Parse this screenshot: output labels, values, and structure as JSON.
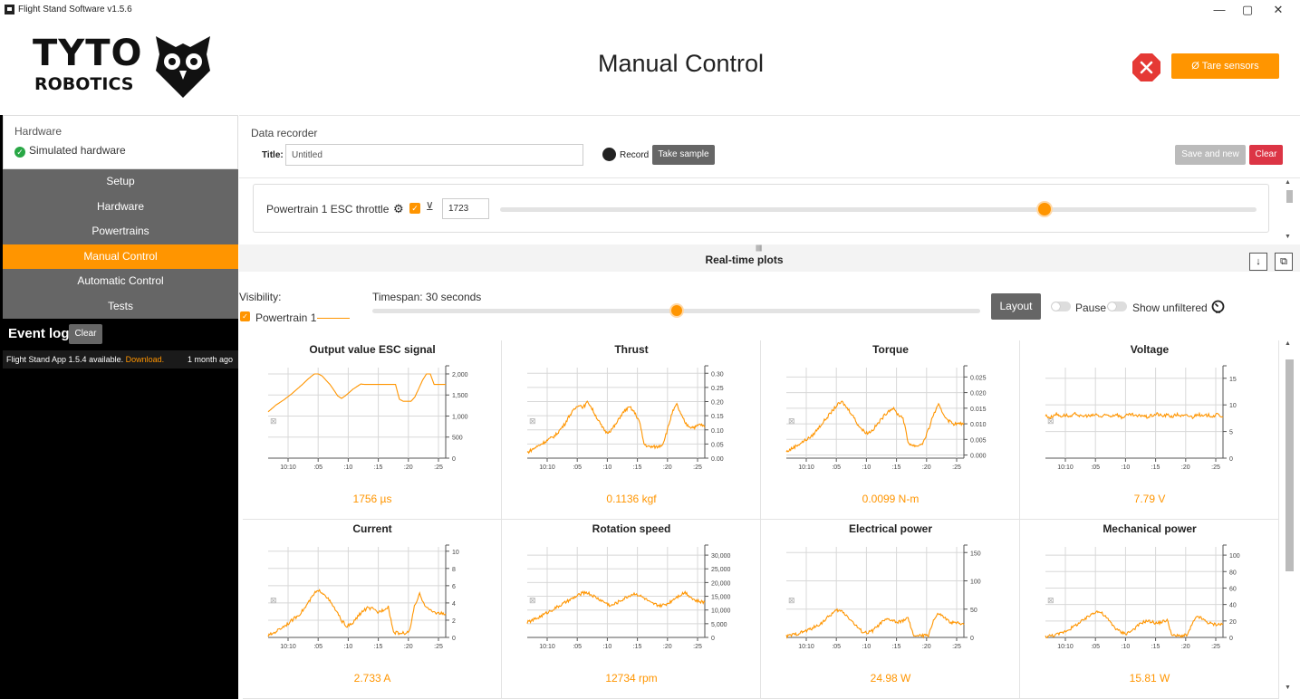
{
  "window": {
    "title": "Flight Stand Software v1.5.6",
    "minimize": "—",
    "maximize": "▢",
    "close": "✕"
  },
  "header": {
    "logo_line1": "TYTO",
    "logo_line2": "ROBOTICS",
    "title": "Manual Control",
    "tare_label": "Ø Tare sensors"
  },
  "sidebar": {
    "hardware_title": "Hardware",
    "hardware_status": "Simulated hardware",
    "items": [
      {
        "label": "Setup",
        "active": false
      },
      {
        "label": "Hardware",
        "active": false
      },
      {
        "label": "Powertrains",
        "active": false
      },
      {
        "label": "Manual Control",
        "active": true
      },
      {
        "label": "Automatic Control",
        "active": false
      },
      {
        "label": "Tests",
        "active": false
      }
    ],
    "event_log": {
      "title": "Event log",
      "clear_label": "Clear",
      "entries": [
        {
          "text": "Flight Stand App 1.5.4 available. ",
          "link": "Download.",
          "time": "1 month ago"
        }
      ]
    }
  },
  "recorder": {
    "heading": "Data recorder",
    "title_label": "Title:",
    "title_value": "Untitled",
    "record_label": "Record",
    "take_sample_label": "Take sample",
    "save_new_label": "Save and new",
    "clear_label": "Clear"
  },
  "throttle": {
    "label": "Powertrain 1 ESC throttle",
    "value": "1723",
    "fraction": 0.72
  },
  "realtime": {
    "title": "Real-time plots",
    "download_icon": "↓",
    "popout_icon": "⧉",
    "visibility_label": "Visibility:",
    "powertrain_label": "Powertrain 1",
    "timespan_label": "Timespan: 30 seconds",
    "timespan_fraction": 0.5,
    "layout_label": "Layout",
    "pause_label": "Pause",
    "unfiltered_label": "Show unfiltered"
  },
  "colors": {
    "accent": "#ff9500",
    "danger": "#dc3545",
    "nav_bg": "#666666"
  },
  "chart_data": [
    {
      "type": "line",
      "title": "Output value ESC signal",
      "value_text": "1756 µs",
      "x_ticks": [
        "10:10",
        ":05",
        ":10",
        ":15",
        ":20",
        ":25"
      ],
      "y_ticks": [
        "0",
        "500",
        "1,000",
        "1,500",
        "2,000"
      ],
      "ylim": [
        0,
        2150
      ],
      "series": [
        {
          "values": [
            1100,
            1180,
            1260,
            1320,
            1380,
            1450,
            1520,
            1600,
            1680,
            1760,
            1850,
            1930,
            2000,
            2000,
            1950,
            1850,
            1750,
            1620,
            1480,
            1420,
            1480,
            1560,
            1640,
            1700,
            1760,
            1750,
            1750,
            1750,
            1750,
            1750,
            1750,
            1750,
            1750,
            1750,
            1400,
            1350,
            1350,
            1350,
            1450,
            1650,
            1850,
            2000,
            2000,
            1750,
            1750,
            1750,
            1750
          ]
        }
      ]
    },
    {
      "type": "line",
      "title": "Thrust",
      "value_text": "0.1136 kgf",
      "x_ticks": [
        "10:10",
        ":05",
        ":10",
        ":15",
        ":20",
        ":25"
      ],
      "y_ticks": [
        "0.00",
        "0.05",
        "0.10",
        "0.15",
        "0.20",
        "0.25",
        "0.30"
      ],
      "ylim": [
        0,
        0.32
      ],
      "series": [
        {
          "values": [
            0.02,
            0.03,
            0.04,
            0.05,
            0.06,
            0.07,
            0.08,
            0.1,
            0.12,
            0.15,
            0.17,
            0.19,
            0.18,
            0.2,
            0.17,
            0.14,
            0.11,
            0.09,
            0.1,
            0.12,
            0.15,
            0.17,
            0.18,
            0.16,
            0.13,
            0.05,
            0.04,
            0.04,
            0.04,
            0.05,
            0.1,
            0.16,
            0.19,
            0.15,
            0.12,
            0.11,
            0.11,
            0.12,
            0.11
          ]
        }
      ]
    },
    {
      "type": "line",
      "title": "Torque",
      "value_text": "0.0099 N-m",
      "x_ticks": [
        "10:10",
        ":05",
        ":10",
        ":15",
        ":20",
        ":25"
      ],
      "y_ticks": [
        "0.000",
        "0.005",
        "0.010",
        "0.015",
        "0.020",
        "0.025"
      ],
      "ylim": [
        -0.001,
        0.028
      ],
      "series": [
        {
          "values": [
            0.001,
            0.002,
            0.003,
            0.004,
            0.005,
            0.006,
            0.008,
            0.01,
            0.012,
            0.014,
            0.016,
            0.017,
            0.015,
            0.013,
            0.01,
            0.008,
            0.007,
            0.008,
            0.01,
            0.012,
            0.014,
            0.015,
            0.013,
            0.012,
            0.004,
            0.003,
            0.003,
            0.004,
            0.008,
            0.013,
            0.016,
            0.013,
            0.011,
            0.01,
            0.01,
            0.01
          ]
        }
      ]
    },
    {
      "type": "line",
      "title": "Voltage",
      "value_text": "7.79 V",
      "x_ticks": [
        "10:10",
        ":05",
        ":10",
        ":15",
        ":20",
        ":25"
      ],
      "y_ticks": [
        "0",
        "5",
        "10",
        "15"
      ],
      "ylim": [
        0,
        17
      ],
      "series": [
        {
          "values": [
            8.0,
            7.6,
            8.3,
            7.9,
            8.1,
            7.7,
            8.4,
            7.8,
            8.0,
            7.9,
            8.2,
            7.7,
            8.1,
            7.9,
            8.3,
            7.6,
            8.0,
            8.2,
            7.8,
            8.1,
            7.7,
            8.0,
            8.3,
            7.9,
            8.1,
            7.8,
            8.2,
            7.9,
            8.0,
            7.7,
            8.3,
            7.8,
            8.1,
            7.9,
            8.2,
            7.8
          ]
        }
      ]
    },
    {
      "type": "line",
      "title": "Current",
      "value_text": "2.733 A",
      "x_ticks": [
        "10:10",
        ":05",
        ":10",
        ":15",
        ":20",
        ":25"
      ],
      "y_ticks": [
        "0",
        "2",
        "4",
        "6",
        "8",
        "10"
      ],
      "ylim": [
        0,
        10.5
      ],
      "series": [
        {
          "values": [
            0.2,
            0.5,
            0.9,
            1.3,
            1.7,
            2.2,
            2.7,
            3.4,
            4.3,
            5.2,
            5.4,
            4.9,
            4.0,
            3.1,
            2.0,
            1.3,
            1.5,
            2.3,
            3.0,
            3.4,
            3.3,
            2.9,
            3.2,
            3.6,
            0.6,
            0.5,
            0.5,
            0.6,
            3.5,
            5.0,
            3.8,
            3.1,
            2.9,
            2.8,
            2.7
          ]
        }
      ]
    },
    {
      "type": "line",
      "title": "Rotation speed",
      "value_text": "12734 rpm",
      "x_ticks": [
        "10:10",
        ":05",
        ":10",
        ":15",
        ":20",
        ":25"
      ],
      "y_ticks": [
        "0",
        "5,000",
        "10,000",
        "15,000",
        "20,000",
        "25,000",
        "30,000"
      ],
      "ylim": [
        0,
        33000
      ],
      "series": [
        {
          "values": [
            5500,
            6200,
            7000,
            8000,
            9000,
            10000,
            11000,
            12000,
            13000,
            14000,
            15000,
            16000,
            16500,
            15500,
            14500,
            13500,
            12500,
            11500,
            12500,
            13500,
            14500,
            15500,
            16000,
            15000,
            14000,
            12500,
            12000,
            11500,
            12000,
            13000,
            14500,
            15500,
            16500,
            15000,
            13500,
            13000,
            12800
          ]
        }
      ]
    },
    {
      "type": "line",
      "title": "Electrical power",
      "value_text": "24.98 W",
      "x_ticks": [
        "10:10",
        ":05",
        ":10",
        ":15",
        ":20",
        ":25"
      ],
      "y_ticks": [
        "0",
        "50",
        "100",
        "150"
      ],
      "ylim": [
        0,
        160
      ],
      "series": [
        {
          "values": [
            2,
            4,
            6,
            9,
            12,
            16,
            20,
            26,
            34,
            42,
            48,
            46,
            38,
            28,
            18,
            10,
            8,
            12,
            20,
            28,
            32,
            30,
            26,
            30,
            34,
            4,
            3,
            3,
            4,
            30,
            42,
            36,
            28,
            26,
            25,
            25
          ]
        }
      ]
    },
    {
      "type": "line",
      "title": "Mechanical power",
      "value_text": "15.81 W",
      "x_ticks": [
        "10:10",
        ":05",
        ":10",
        ":15",
        ":20",
        ":25"
      ],
      "y_ticks": [
        "0",
        "20",
        "40",
        "60",
        "80",
        "100"
      ],
      "ylim": [
        0,
        110
      ],
      "series": [
        {
          "values": [
            1,
            2,
            3,
            5,
            8,
            11,
            15,
            19,
            23,
            28,
            32,
            30,
            24,
            17,
            10,
            6,
            5,
            8,
            13,
            18,
            20,
            19,
            17,
            19,
            21,
            2,
            2,
            2,
            3,
            17,
            26,
            22,
            18,
            16,
            16,
            16
          ]
        }
      ]
    }
  ]
}
